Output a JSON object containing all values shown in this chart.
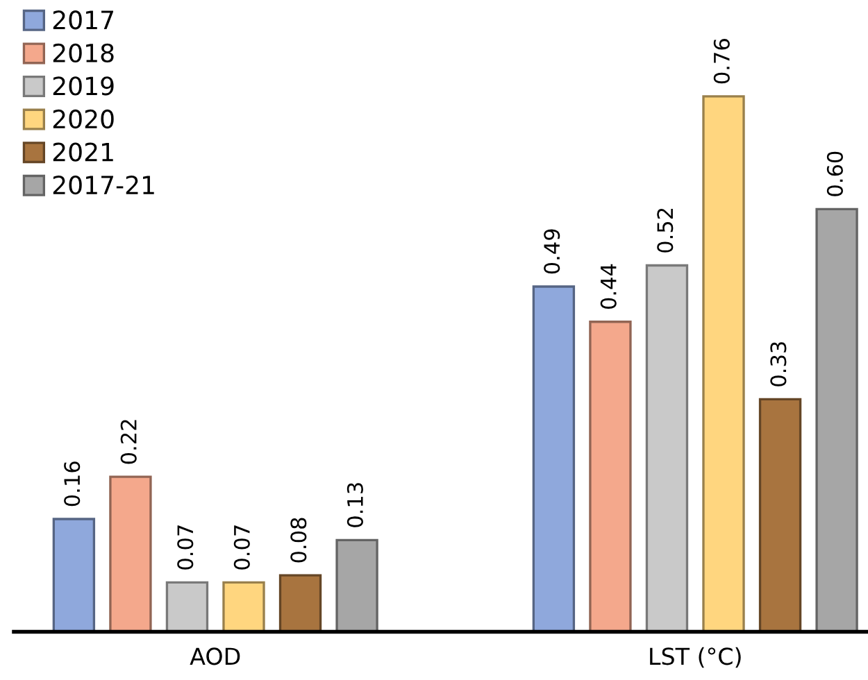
{
  "chart_data": {
    "type": "bar",
    "categories": [
      "AOD",
      "LST (°C)"
    ],
    "series": [
      {
        "name": "2017",
        "color": "#8fa8dc",
        "values": [
          0.16,
          0.49
        ],
        "value_labels": [
          "0.16",
          "0.49"
        ]
      },
      {
        "name": "2018",
        "color": "#f4a88c",
        "values": [
          0.22,
          0.44
        ],
        "value_labels": [
          "0.22",
          "0.44"
        ]
      },
      {
        "name": "2019",
        "color": "#c9c9c9",
        "values": [
          0.07,
          0.52
        ],
        "value_labels": [
          "0.07",
          "0.52"
        ]
      },
      {
        "name": "2020",
        "color": "#ffd67f",
        "values": [
          0.07,
          0.76
        ],
        "value_labels": [
          "0.07",
          "0.76"
        ]
      },
      {
        "name": "2021",
        "color": "#a8743f",
        "values": [
          0.08,
          0.33
        ],
        "value_labels": [
          "0.08",
          "0.33"
        ]
      },
      {
        "name": "2017-21",
        "color": "#a6a6a6",
        "values": [
          0.13,
          0.6
        ],
        "value_labels": [
          "0.13",
          "0.60"
        ]
      }
    ],
    "legend": "top left"
  }
}
